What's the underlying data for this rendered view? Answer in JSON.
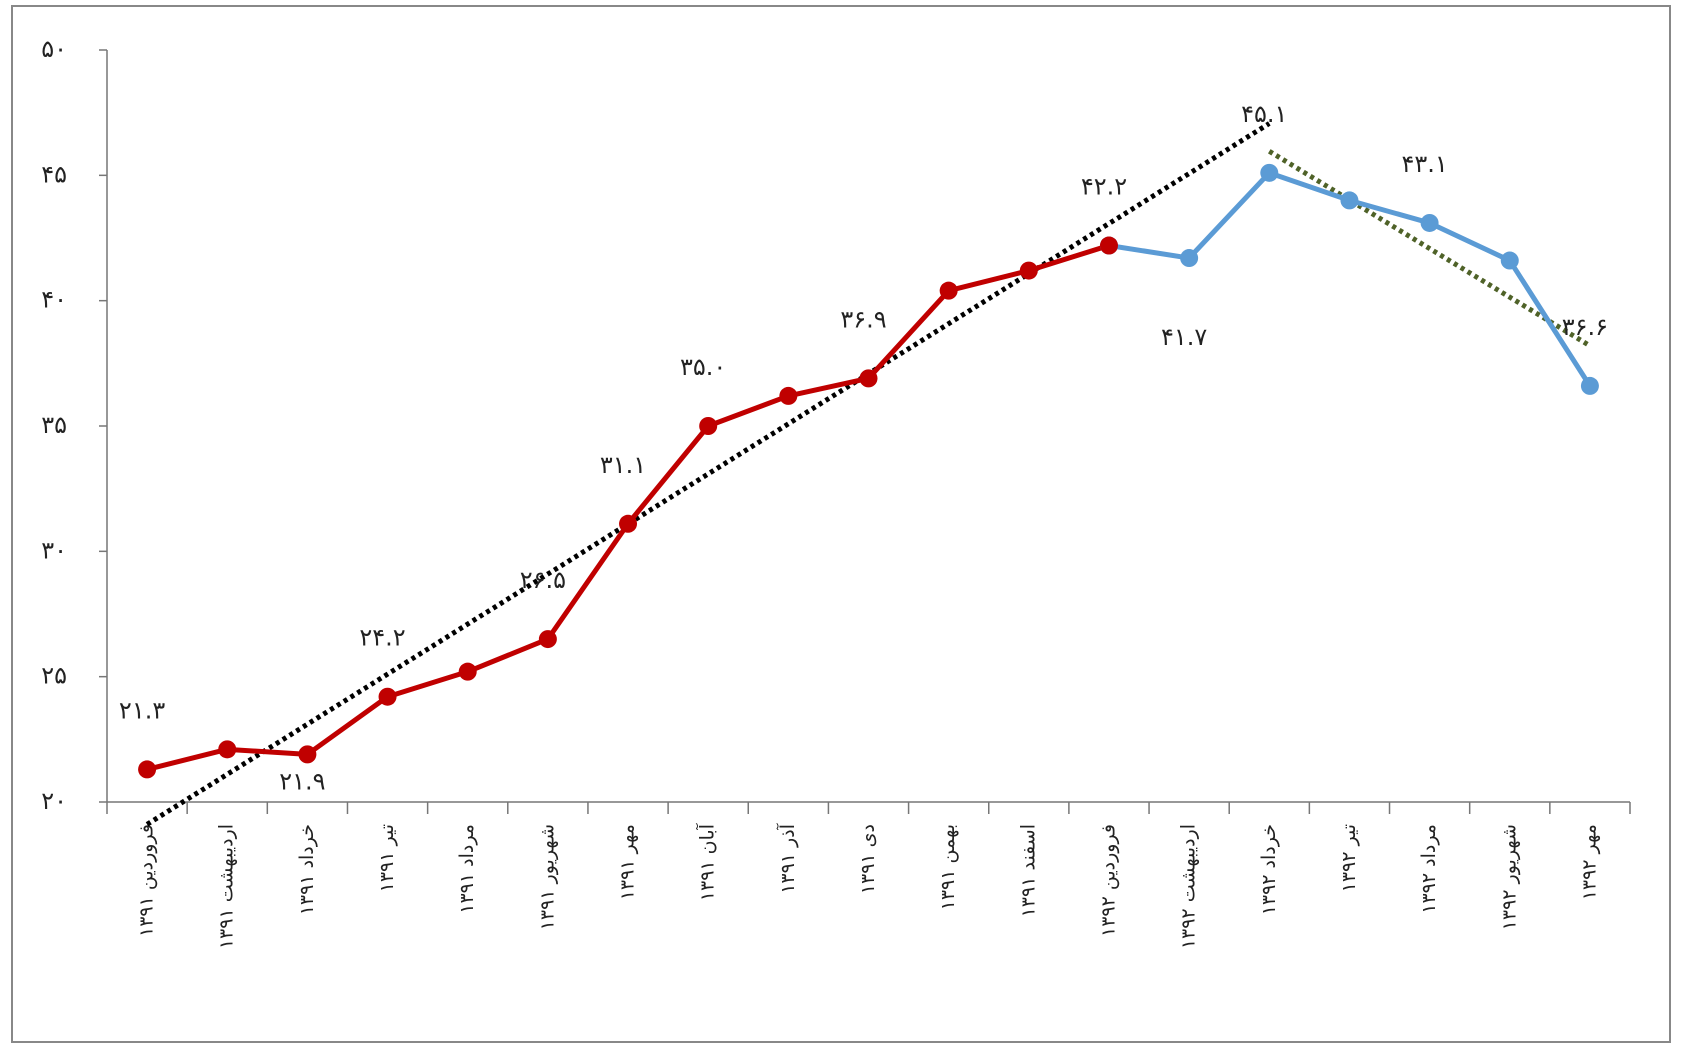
{
  "chart_data": {
    "type": "line",
    "categories": [
      "فروردین ۱۳۹۱",
      "اردیبهشت ۱۳۹۱",
      "خرداد ۱۳۹۱",
      "تیر ۱۳۹۱",
      "مرداد ۱۳۹۱",
      "شهریور ۱۳۹۱",
      "مهر ۱۳۹۱",
      "آبان ۱۳۹۱",
      "آذر ۱۳۹۱",
      "دی ۱۳۹۱",
      "بهمن ۱۳۹۱",
      "اسفند ۱۳۹۱",
      "فروردین ۱۳۹۲",
      "اردیبهشت ۱۳۹۲",
      "خرداد ۱۳۹۲",
      "تیر ۱۳۹۲",
      "مرداد ۱۳۹۲",
      "شهریور ۱۳۹۲",
      "مهر ۱۳۹۲"
    ],
    "series": [
      {
        "color": "#c00000",
        "values": [
          21.3,
          22.1,
          21.9,
          24.2,
          25.2,
          26.5,
          31.1,
          35.0,
          36.2,
          36.9,
          40.4,
          41.2,
          42.2,
          null,
          null,
          null,
          null,
          null,
          null
        ],
        "value_labels": [
          "۲۱.۳",
          null,
          "۲۱.۹",
          "۲۴.۲",
          null,
          "۲۶.۵",
          "۳۱.۱",
          "۳۵.۰",
          null,
          "۳۶.۹",
          null,
          null,
          "۴۲.۲",
          null,
          null,
          null,
          null,
          null,
          null
        ]
      },
      {
        "color": "#5b9bd5",
        "values": [
          null,
          null,
          null,
          null,
          null,
          null,
          null,
          null,
          null,
          null,
          null,
          null,
          42.2,
          41.7,
          45.1,
          44.0,
          43.1,
          41.6,
          36.6
        ],
        "value_labels": [
          null,
          null,
          null,
          null,
          null,
          null,
          null,
          null,
          null,
          null,
          null,
          null,
          null,
          "۴۱.۷",
          "۴۵.۱",
          null,
          "۴۳.۱",
          null,
          "۳۶.۶"
        ]
      }
    ],
    "trendlines": [
      {
        "series": 0,
        "fit": [
          0,
          12
        ],
        "draw": [
          0,
          14
        ],
        "color": "#000000"
      },
      {
        "series": 1,
        "fit": [
          14,
          18
        ],
        "draw": [
          14,
          18
        ],
        "color": "#4f6228"
      }
    ],
    "ylim": [
      20,
      50
    ],
    "yticks": [
      {
        "value": 20,
        "label": "۲۰"
      },
      {
        "value": 25,
        "label": "۲۵"
      },
      {
        "value": 30,
        "label": "۳۰"
      },
      {
        "value": 35,
        "label": "۳۵"
      },
      {
        "value": 40,
        "label": "۴۰"
      },
      {
        "value": 45,
        "label": "۴۵"
      },
      {
        "value": 50,
        "label": "۵۰"
      }
    ]
  }
}
